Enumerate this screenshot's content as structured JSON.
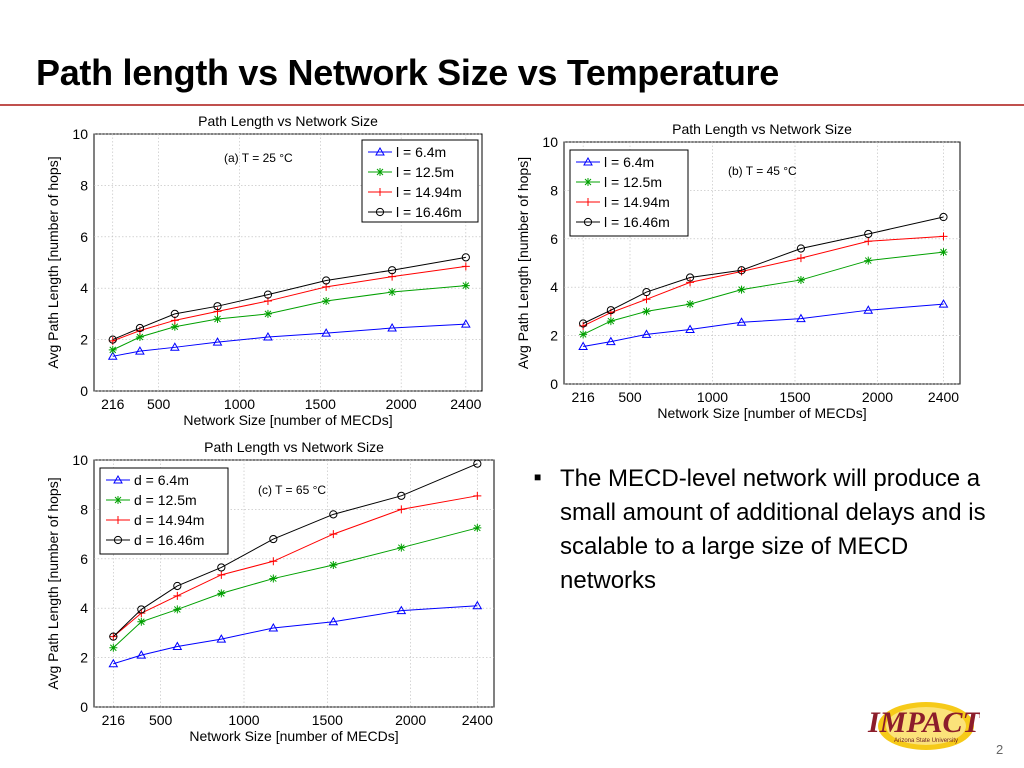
{
  "slide": {
    "title": "Path length vs Network Size vs Temperature",
    "bullet": "The MECD-level network will produce a small amount of additional delays and is scalable to a large size of MECD networks",
    "logo_text": "IMPACT",
    "logo_subtext": "Arizona State University",
    "page_number": "2"
  },
  "colors": {
    "series": [
      "#0000ff",
      "#00a000",
      "#ff0000",
      "#000000"
    ],
    "title_rule": "#c0504d"
  },
  "chart_data": [
    {
      "type": "line",
      "title": "Path Length vs Network Size",
      "annotation": "(a) T = 25 °C",
      "xlabel": "Network Size [number of MECDs]",
      "ylabel": "Avg Path Length [number of hops]",
      "xlim": [
        100,
        2500
      ],
      "ylim": [
        0,
        10
      ],
      "xticks": [
        216,
        500,
        1000,
        1500,
        2000,
        2400
      ],
      "yticks": [
        0,
        2,
        4,
        6,
        8,
        10
      ],
      "legend_position": "top-right",
      "x": [
        216,
        384,
        600,
        864,
        1176,
        1536,
        1944,
        2400
      ],
      "series": [
        {
          "name": "l = 6.4m",
          "marker": "triangle",
          "values": [
            1.35,
            1.55,
            1.7,
            1.9,
            2.1,
            2.25,
            2.45,
            2.6
          ]
        },
        {
          "name": "l = 12.5m",
          "marker": "star",
          "values": [
            1.6,
            2.1,
            2.5,
            2.8,
            3.0,
            3.5,
            3.85,
            4.1
          ]
        },
        {
          "name": "l = 14.94m",
          "marker": "plus",
          "values": [
            1.95,
            2.35,
            2.75,
            3.1,
            3.5,
            4.05,
            4.45,
            4.85
          ]
        },
        {
          "name": "l = 16.46m",
          "marker": "circle",
          "values": [
            2.0,
            2.45,
            3.0,
            3.3,
            3.75,
            4.3,
            4.7,
            5.2
          ]
        }
      ]
    },
    {
      "type": "line",
      "title": "Path Length vs Network Size",
      "annotation": "(b) T = 45 °C",
      "xlabel": "Network Size [number of MECDs]",
      "ylabel": "Avg Path Length [number of hops]",
      "xlim": [
        100,
        2500
      ],
      "ylim": [
        0,
        10
      ],
      "xticks": [
        216,
        500,
        1000,
        1500,
        2000,
        2400
      ],
      "yticks": [
        0,
        2,
        4,
        6,
        8,
        10
      ],
      "legend_position": "top-left",
      "x": [
        216,
        384,
        600,
        864,
        1176,
        1536,
        1944,
        2400
      ],
      "series": [
        {
          "name": "l = 6.4m",
          "marker": "triangle",
          "values": [
            1.55,
            1.75,
            2.05,
            2.25,
            2.55,
            2.7,
            3.05,
            3.3
          ]
        },
        {
          "name": "l = 12.5m",
          "marker": "star",
          "values": [
            2.05,
            2.6,
            3.0,
            3.3,
            3.9,
            4.3,
            5.1,
            5.45
          ]
        },
        {
          "name": "l = 14.94m",
          "marker": "plus",
          "values": [
            2.4,
            2.95,
            3.5,
            4.2,
            4.65,
            5.2,
            5.9,
            6.1
          ]
        },
        {
          "name": "l = 16.46m",
          "marker": "circle",
          "values": [
            2.5,
            3.05,
            3.8,
            4.4,
            4.7,
            5.6,
            6.2,
            6.9
          ]
        }
      ]
    },
    {
      "type": "line",
      "title": "Path Length vs Network Size",
      "annotation": "(c) T = 65 °C",
      "xlabel": "Network Size [number of MECDs]",
      "ylabel": "Avg Path Length [number of hops]",
      "xlim": [
        100,
        2500
      ],
      "ylim": [
        0,
        10
      ],
      "xticks": [
        216,
        500,
        1000,
        1500,
        2000,
        2400
      ],
      "yticks": [
        0,
        2,
        4,
        6,
        8,
        10
      ],
      "legend_position": "top-left",
      "x": [
        216,
        384,
        600,
        864,
        1176,
        1536,
        1944,
        2400
      ],
      "series": [
        {
          "name": "d = 6.4m",
          "marker": "triangle",
          "values": [
            1.75,
            2.1,
            2.45,
            2.75,
            3.2,
            3.45,
            3.9,
            4.1
          ]
        },
        {
          "name": "d = 12.5m",
          "marker": "star",
          "values": [
            2.4,
            3.45,
            3.95,
            4.6,
            5.2,
            5.75,
            6.45,
            7.25
          ]
        },
        {
          "name": "d = 14.94m",
          "marker": "plus",
          "values": [
            2.85,
            3.8,
            4.5,
            5.35,
            5.9,
            7.0,
            8.0,
            8.55
          ]
        },
        {
          "name": "d = 16.46m",
          "marker": "circle",
          "values": [
            2.85,
            3.95,
            4.9,
            5.65,
            6.8,
            7.8,
            8.55,
            9.85
          ]
        }
      ]
    }
  ]
}
